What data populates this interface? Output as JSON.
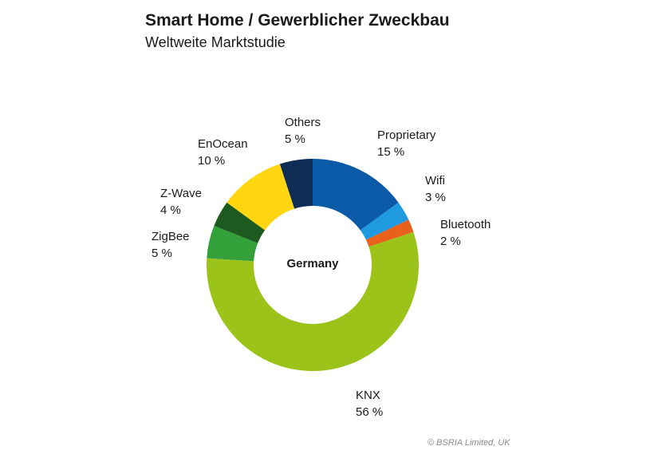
{
  "chart_data": {
    "type": "pie",
    "donut": true,
    "title": "Smart Home / Gewerblicher Zweckbau",
    "subtitle": "Weltweite Marktstudie",
    "center_label": "Germany",
    "unit": "%",
    "slices": [
      {
        "name": "Proprietary",
        "value": 15,
        "display": "15 %",
        "color": "#0a5aa8"
      },
      {
        "name": "Wifi",
        "value": 3,
        "display": "3 %",
        "color": "#1f9ae0"
      },
      {
        "name": "Bluetooth",
        "value": 2,
        "display": "2 %",
        "color": "#e8601a"
      },
      {
        "name": "KNX",
        "value": 56,
        "display": "56 %",
        "color": "#9cc319"
      },
      {
        "name": "ZigBee",
        "value": 5,
        "display": "5 %",
        "color": "#34a03a"
      },
      {
        "name": "Z-Wave",
        "value": 4,
        "display": "4 %",
        "color": "#1c5a1f"
      },
      {
        "name": "EnOcean",
        "value": 10,
        "display": "10 %",
        "color": "#ffd60f"
      },
      {
        "name": "Others",
        "value": 5,
        "display": "5 %",
        "color": "#0f2c55"
      }
    ]
  },
  "copyright": "© BSRIA Limited, UK"
}
